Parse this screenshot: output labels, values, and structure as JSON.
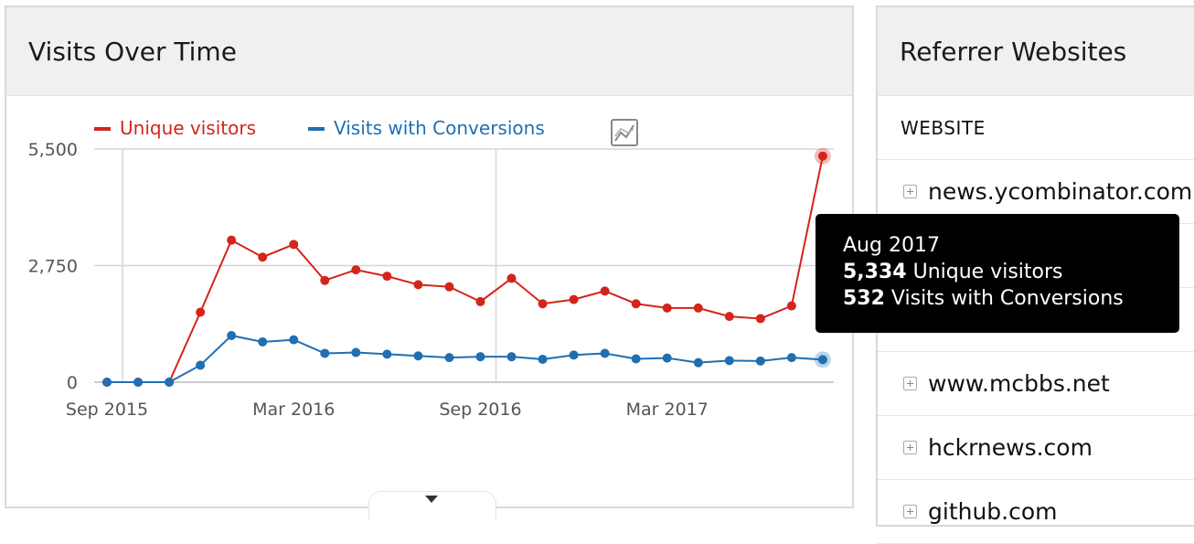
{
  "visits_widget": {
    "title": "Visits Over Time"
  },
  "chart_data": {
    "type": "line",
    "x": [
      "2015-09",
      "2015-10",
      "2015-11",
      "2015-12",
      "2016-01",
      "2016-02",
      "2016-03",
      "2016-04",
      "2016-05",
      "2016-06",
      "2016-07",
      "2016-08",
      "2016-09",
      "2016-10",
      "2016-11",
      "2016-12",
      "2017-01",
      "2017-02",
      "2017-03",
      "2017-04",
      "2017-05",
      "2017-06",
      "2017-07",
      "2017-08"
    ],
    "series": [
      {
        "name": "Unique visitors",
        "color": "#d4241c",
        "values": [
          0,
          0,
          0,
          1650,
          3350,
          2950,
          3250,
          2400,
          2650,
          2500,
          2300,
          2250,
          1900,
          2450,
          1850,
          1950,
          2150,
          1850,
          1750,
          1750,
          1550,
          1500,
          1800,
          5334
        ]
      },
      {
        "name": "Visits with Conversions",
        "color": "#1f6fb2",
        "values": [
          0,
          0,
          0,
          400,
          1100,
          950,
          1000,
          680,
          700,
          660,
          620,
          580,
          600,
          600,
          540,
          640,
          680,
          550,
          570,
          460,
          510,
          500,
          580,
          532
        ]
      }
    ],
    "ylim": [
      0,
      5500
    ],
    "yticks": [
      "5,500",
      "2,750",
      "0"
    ],
    "xticks": [
      "Sep 2015",
      "Mar 2016",
      "Sep 2016",
      "Mar 2017"
    ],
    "grid": true,
    "legend": "top"
  },
  "tooltip": {
    "title": "Aug 2017",
    "line1_value": "5,334",
    "line1_label": " Unique visitors",
    "line2_value": "532",
    "line2_label": " Visits with Conversions"
  },
  "referrer_widget": {
    "title": "Referrer Websites",
    "column_header": "WEBSITE",
    "rows": [
      {
        "label": "news.ycombinator.com"
      },
      {
        "label": ""
      },
      {
        "label": ""
      },
      {
        "label": "www.mcbbs.net"
      },
      {
        "label": "hckrnews.com"
      },
      {
        "label": "github.com"
      }
    ]
  }
}
